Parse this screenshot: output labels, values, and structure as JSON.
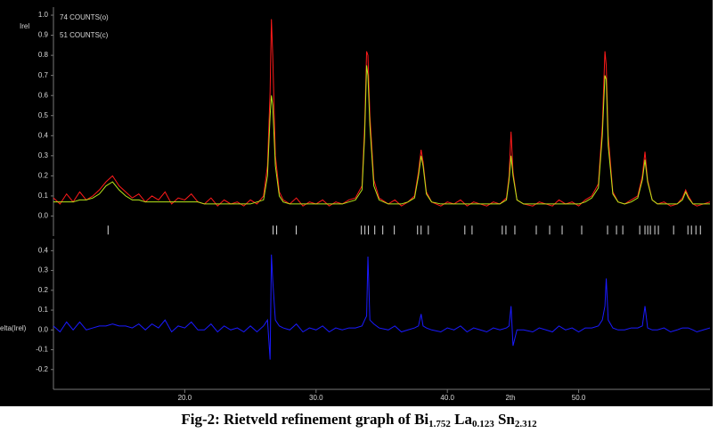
{
  "chart_data": [
    {
      "type": "line",
      "y_label": "Irel",
      "x": [
        10,
        10.5,
        11,
        11.5,
        12,
        12.5,
        13,
        13.5,
        14,
        14.5,
        15,
        15.5,
        16,
        16.5,
        17,
        17.5,
        18,
        18.5,
        19,
        19.5,
        20,
        20.5,
        21,
        21.5,
        22,
        22.5,
        23,
        23.5,
        24,
        24.5,
        25,
        25.5,
        26,
        26.3,
        26.5,
        26.6,
        26.7,
        26.9,
        27.2,
        27.5,
        28,
        28.5,
        29,
        29.5,
        30,
        30.5,
        31,
        31.5,
        32,
        32.5,
        33,
        33.5,
        33.7,
        33.85,
        33.95,
        34.1,
        34.4,
        34.8,
        35.5,
        36,
        36.5,
        37,
        37.5,
        37.8,
        38.0,
        38.15,
        38.4,
        38.8,
        39.5,
        40,
        40.5,
        41,
        41.5,
        42,
        42.5,
        43,
        43.5,
        44,
        44.5,
        44.7,
        44.85,
        45.0,
        45.3,
        45.8,
        46.5,
        47,
        47.5,
        48,
        48.5,
        49,
        49.5,
        50,
        50.5,
        51,
        51.5,
        51.8,
        52.0,
        52.1,
        52.25,
        52.6,
        53,
        53.5,
        54,
        54.5,
        54.85,
        55.05,
        55.25,
        55.6,
        56,
        56.5,
        57,
        57.5,
        57.9,
        58.15,
        58.35,
        58.7,
        59,
        59.5,
        60
      ],
      "series": [
        {
          "name": "74 COUNTS(o)",
          "color": "#ff1a1a",
          "values": [
            0.09,
            0.06,
            0.11,
            0.07,
            0.12,
            0.08,
            0.1,
            0.13,
            0.17,
            0.2,
            0.15,
            0.12,
            0.09,
            0.11,
            0.07,
            0.1,
            0.08,
            0.12,
            0.06,
            0.09,
            0.08,
            0.11,
            0.07,
            0.06,
            0.09,
            0.05,
            0.08,
            0.06,
            0.07,
            0.05,
            0.08,
            0.06,
            0.1,
            0.25,
            0.62,
            0.98,
            0.8,
            0.3,
            0.12,
            0.08,
            0.06,
            0.09,
            0.05,
            0.07,
            0.06,
            0.08,
            0.05,
            0.07,
            0.06,
            0.08,
            0.09,
            0.15,
            0.45,
            0.82,
            0.8,
            0.5,
            0.18,
            0.09,
            0.06,
            0.08,
            0.05,
            0.07,
            0.1,
            0.22,
            0.33,
            0.27,
            0.12,
            0.07,
            0.05,
            0.07,
            0.06,
            0.08,
            0.05,
            0.07,
            0.06,
            0.05,
            0.07,
            0.06,
            0.09,
            0.2,
            0.42,
            0.22,
            0.08,
            0.06,
            0.05,
            0.07,
            0.06,
            0.05,
            0.08,
            0.06,
            0.07,
            0.05,
            0.08,
            0.1,
            0.16,
            0.45,
            0.82,
            0.75,
            0.4,
            0.12,
            0.07,
            0.06,
            0.08,
            0.1,
            0.2,
            0.32,
            0.18,
            0.08,
            0.06,
            0.07,
            0.05,
            0.06,
            0.09,
            0.13,
            0.1,
            0.06,
            0.05,
            0.06,
            0.07
          ]
        },
        {
          "name": "51 COUNTS(c)",
          "color": "#b8e619",
          "values": [
            0.07,
            0.07,
            0.07,
            0.07,
            0.08,
            0.08,
            0.09,
            0.11,
            0.15,
            0.17,
            0.13,
            0.1,
            0.08,
            0.08,
            0.07,
            0.07,
            0.07,
            0.07,
            0.07,
            0.07,
            0.07,
            0.07,
            0.07,
            0.06,
            0.06,
            0.06,
            0.06,
            0.06,
            0.06,
            0.06,
            0.06,
            0.07,
            0.08,
            0.2,
            0.5,
            0.6,
            0.55,
            0.25,
            0.1,
            0.07,
            0.06,
            0.06,
            0.06,
            0.06,
            0.06,
            0.06,
            0.06,
            0.06,
            0.06,
            0.07,
            0.08,
            0.13,
            0.4,
            0.75,
            0.7,
            0.45,
            0.15,
            0.08,
            0.06,
            0.06,
            0.06,
            0.07,
            0.09,
            0.2,
            0.3,
            0.25,
            0.11,
            0.07,
            0.06,
            0.06,
            0.06,
            0.06,
            0.06,
            0.06,
            0.06,
            0.06,
            0.06,
            0.06,
            0.08,
            0.18,
            0.3,
            0.2,
            0.08,
            0.06,
            0.06,
            0.06,
            0.06,
            0.06,
            0.06,
            0.06,
            0.06,
            0.06,
            0.07,
            0.09,
            0.14,
            0.4,
            0.7,
            0.68,
            0.35,
            0.11,
            0.07,
            0.06,
            0.07,
            0.09,
            0.18,
            0.28,
            0.17,
            0.08,
            0.06,
            0.06,
            0.06,
            0.06,
            0.08,
            0.12,
            0.09,
            0.06,
            0.06,
            0.06,
            0.06
          ]
        }
      ],
      "reflections": [
        14.16,
        26.73,
        27.0,
        28.49,
        33.45,
        33.72,
        33.99,
        34.47,
        35.08,
        35.96,
        37.73,
        38.0,
        38.55,
        41.33,
        41.88,
        44.18,
        44.46,
        45.14,
        46.77,
        47.79,
        48.74,
        50.23,
        52.2,
        52.88,
        53.36,
        54.65,
        55.05,
        55.26,
        55.46,
        55.8,
        56.07,
        57.23,
        58.32,
        58.59,
        58.93,
        59.27
      ],
      "reflection_level": -0.07,
      "xlim": [
        10,
        60
      ],
      "ylim": [
        -0.1,
        1.04
      ],
      "yticks": [
        {
          "value": 0,
          "label": "0.0"
        },
        0.1,
        0.2,
        0.3,
        0.4,
        0.5,
        0.6,
        0.7,
        0.8,
        0.9,
        {
          "value": 1,
          "label": "1.0"
        }
      ]
    },
    {
      "type": "line",
      "y_label": "elta(Irel)",
      "x_label": "2th",
      "x": [
        10,
        10.5,
        11,
        11.5,
        12,
        12.5,
        13,
        13.5,
        14,
        14.5,
        15,
        15.5,
        16,
        16.5,
        17,
        17.5,
        18,
        18.5,
        19,
        19.5,
        20,
        20.5,
        21,
        21.5,
        22,
        22.5,
        23,
        23.5,
        24,
        24.5,
        25,
        25.5,
        26,
        26.3,
        26.5,
        26.6,
        26.7,
        26.9,
        27.2,
        27.5,
        28,
        28.5,
        29,
        29.5,
        30,
        30.5,
        31,
        31.5,
        32,
        32.5,
        33,
        33.5,
        33.7,
        33.85,
        33.95,
        34.1,
        34.4,
        34.8,
        35.5,
        36,
        36.5,
        37,
        37.5,
        37.8,
        38.0,
        38.15,
        38.4,
        38.8,
        39.5,
        40,
        40.5,
        41,
        41.5,
        42,
        42.5,
        43,
        43.5,
        44,
        44.5,
        44.7,
        44.85,
        45.0,
        45.3,
        45.8,
        46.5,
        47,
        47.5,
        48,
        48.5,
        49,
        49.5,
        50,
        50.5,
        51,
        51.5,
        51.8,
        52.0,
        52.1,
        52.25,
        52.6,
        53,
        53.5,
        54,
        54.5,
        54.85,
        55.05,
        55.25,
        55.6,
        56,
        56.5,
        57,
        57.5,
        57.9,
        58.15,
        58.35,
        58.7,
        59,
        59.5,
        60
      ],
      "series": [
        {
          "color": "#1a1aff",
          "values": [
            0.02,
            -0.01,
            0.04,
            0.0,
            0.04,
            0.0,
            0.01,
            0.02,
            0.02,
            0.03,
            0.02,
            0.02,
            0.01,
            0.03,
            0.0,
            0.03,
            0.01,
            0.05,
            -0.01,
            0.02,
            0.01,
            0.04,
            0.0,
            0.0,
            0.03,
            -0.01,
            0.02,
            0.0,
            0.01,
            -0.01,
            0.02,
            -0.01,
            0.02,
            0.05,
            -0.15,
            0.38,
            0.25,
            0.05,
            0.02,
            0.01,
            0.0,
            0.03,
            -0.01,
            0.01,
            0.0,
            0.02,
            -0.01,
            0.01,
            0.0,
            0.01,
            0.01,
            0.02,
            0.05,
            0.07,
            0.37,
            0.05,
            0.03,
            0.01,
            0.0,
            0.02,
            -0.01,
            0.0,
            0.01,
            0.02,
            0.08,
            0.02,
            0.01,
            0.0,
            -0.01,
            0.01,
            0.0,
            0.02,
            -0.01,
            0.01,
            0.0,
            -0.01,
            0.01,
            0.0,
            0.01,
            0.02,
            0.12,
            -0.08,
            0.0,
            0.0,
            -0.01,
            0.01,
            0.0,
            -0.01,
            0.02,
            0.0,
            0.01,
            -0.01,
            0.01,
            0.01,
            0.02,
            0.05,
            0.12,
            0.26,
            0.05,
            0.01,
            0.0,
            0.0,
            0.01,
            0.01,
            0.02,
            0.12,
            0.01,
            0.0,
            0.0,
            0.01,
            -0.01,
            0.0,
            0.01,
            0.01,
            0.01,
            0.0,
            -0.01,
            0.0,
            0.01
          ]
        }
      ],
      "xlim": [
        10,
        60
      ],
      "ylim": [
        -0.3,
        0.46
      ],
      "yticks": [
        0.4,
        0.3,
        0.2,
        0.1,
        {
          "value": 0,
          "label": "0.0"
        },
        -0.1,
        -0.2
      ],
      "xticks": [
        {
          "value": 20,
          "label": "20.0"
        },
        {
          "value": 30,
          "label": "30.0"
        },
        {
          "value": 40,
          "label": "40.0"
        },
        {
          "value": 50,
          "label": "50.0"
        }
      ]
    }
  ],
  "caption": {
    "prefix": "Fig-2: Rietveld refinement graph of ",
    "formula": [
      {
        "element": "Bi",
        "subscript": "1.752"
      },
      {
        "element": " La",
        "subscript": "0.123"
      },
      {
        "element": " Sn",
        "subscript": "2.312"
      }
    ]
  }
}
